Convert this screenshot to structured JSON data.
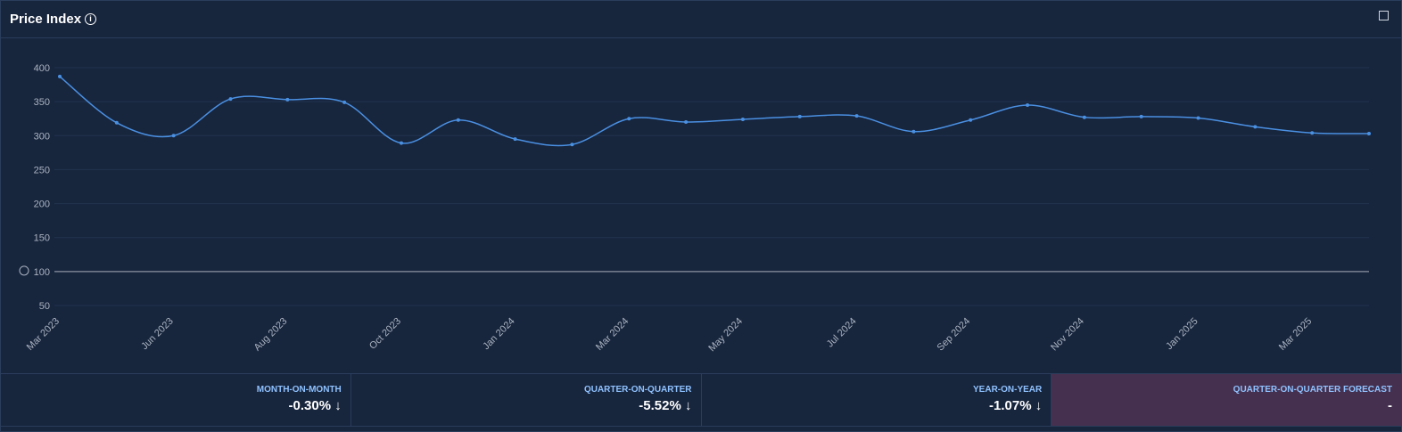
{
  "header": {
    "title": "Price Index"
  },
  "chart_data": {
    "type": "line",
    "color": "#4a90e2",
    "categories": [
      "Mar 2023",
      null,
      "Jun 2023",
      null,
      "Aug 2023",
      null,
      "Oct 2023",
      null,
      "Jan 2024",
      null,
      "Mar 2024",
      null,
      "May 2024",
      null,
      "Jul 2024",
      null,
      "Sep 2024",
      null,
      "Nov 2024",
      null,
      "Jan 2025",
      null,
      "Mar 2025",
      null
    ],
    "values": [
      387,
      319,
      300,
      354,
      353,
      349,
      289,
      323,
      295,
      287,
      325,
      320,
      324,
      328,
      329,
      306,
      323,
      345,
      327,
      328,
      326,
      313,
      304,
      303
    ],
    "ylim": [
      50,
      400
    ],
    "yticks": [
      50,
      100,
      150,
      200,
      250,
      300,
      350,
      400
    ],
    "grid": true,
    "reference_line": 100
  },
  "stats": [
    {
      "label": "MONTH-ON-MONTH",
      "value": "-0.30%"
    },
    {
      "label": "QUARTER-ON-QUARTER",
      "value": "-5.52%"
    },
    {
      "label": "YEAR-ON-YEAR",
      "value": "-1.07%"
    },
    {
      "label": "QUARTER-ON-QUARTER FORECAST",
      "value": "-"
    }
  ]
}
